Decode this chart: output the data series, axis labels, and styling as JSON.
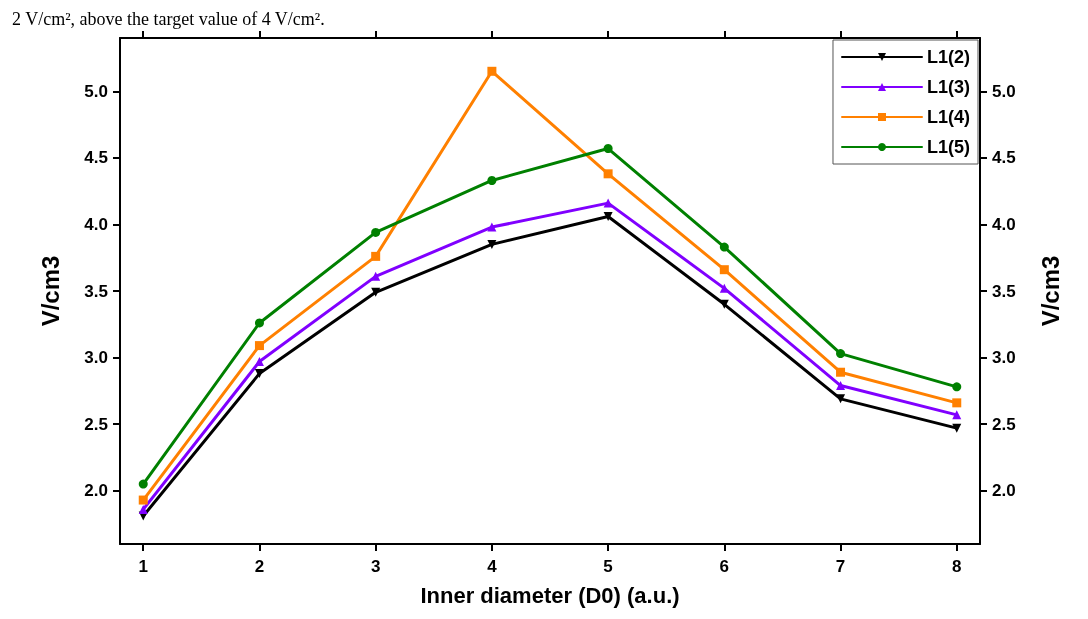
{
  "chart_data": {
    "type": "line",
    "annotations": [
      "2 V/cm², above the target value of 4 V/cm²."
    ],
    "xlabel": "Inner diameter (D0) (a.u.)",
    "ylabel": "V/cm3",
    "y2label": "V/cm3",
    "x": [
      1,
      2,
      3,
      4,
      5,
      6,
      7,
      8
    ],
    "xlim": [
      0.8,
      8.2
    ],
    "xticks": [
      1,
      2,
      3,
      4,
      5,
      6,
      7,
      8
    ],
    "ylim": [
      1.6,
      5.4
    ],
    "yticks": [
      {
        "value": 2,
        "label": "2.0"
      },
      {
        "value": 2.5,
        "label": "2.5"
      },
      {
        "value": 3,
        "label": "3.0"
      },
      {
        "value": 3.5,
        "label": "3.5"
      },
      {
        "value": 4,
        "label": "4.0"
      },
      {
        "value": 4.5,
        "label": "4.5"
      },
      {
        "value": 5,
        "label": "5.0"
      }
    ],
    "y2lim": [
      1.6,
      5.4
    ],
    "y2ticks": [
      {
        "value": 2,
        "label": "2.0"
      },
      {
        "value": 2.5,
        "label": "2.5"
      },
      {
        "value": 3,
        "label": "3.0"
      },
      {
        "value": 3.5,
        "label": "3.5"
      },
      {
        "value": 4,
        "label": "4.0"
      },
      {
        "value": 4.5,
        "label": "4.5"
      },
      {
        "value": 5,
        "label": "5.0"
      }
    ],
    "grid": false,
    "legend": "top right",
    "line_style": "solid",
    "series": [
      {
        "name": "L1(2)",
        "color": "#000000",
        "marker": "triangle-down",
        "values": [
          1.81,
          2.88,
          3.49,
          3.85,
          4.06,
          3.4,
          2.69,
          2.47
        ]
      },
      {
        "name": "L1(3)",
        "color": "#8000ff",
        "marker": "triangle",
        "values": [
          1.86,
          2.97,
          3.61,
          3.98,
          4.16,
          3.52,
          2.79,
          2.57
        ]
      },
      {
        "name": "L1(4)",
        "color": "#ff8000",
        "marker": "square",
        "values": [
          1.93,
          3.09,
          3.76,
          5.15,
          4.38,
          3.66,
          2.89,
          2.66
        ]
      },
      {
        "name": "L1(5)",
        "color": "#008000",
        "marker": "circle",
        "values": [
          2.05,
          3.26,
          3.94,
          4.33,
          4.57,
          3.83,
          3.03,
          2.78
        ]
      }
    ]
  }
}
